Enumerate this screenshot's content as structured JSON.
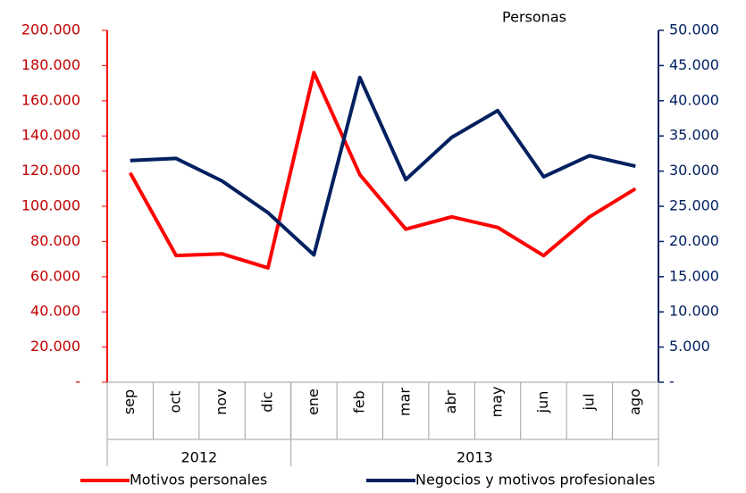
{
  "chart_data": {
    "type": "line",
    "title": "Personas",
    "category_groups": [
      {
        "label": "2012",
        "categories": [
          "sep",
          "oct",
          "nov",
          "dic"
        ]
      },
      {
        "label": "2013",
        "categories": [
          "ene",
          "feb",
          "mar",
          "abr",
          "may",
          "jun",
          "jul",
          "ago"
        ]
      }
    ],
    "series": [
      {
        "name": "Motivos personales",
        "color": "#ff0000",
        "axis": "y",
        "values": [
          119000,
          72000,
          73000,
          65000,
          176000,
          118000,
          87000,
          94000,
          88000,
          72000,
          94000,
          110000
        ]
      },
      {
        "name": "Negocios y motivos profesionales",
        "color": "#002060",
        "axis": "y2",
        "values": [
          31500,
          31800,
          28600,
          24100,
          18100,
          43300,
          28800,
          34800,
          38600,
          29200,
          32200,
          30700
        ]
      }
    ],
    "ylim": [
      0,
      200000
    ],
    "yticks": [
      {
        "value": 0,
        "label": "-"
      },
      {
        "value": 20000,
        "label": "20.000"
      },
      {
        "value": 40000,
        "label": "40.000"
      },
      {
        "value": 60000,
        "label": "60.000"
      },
      {
        "value": 80000,
        "label": "80.000"
      },
      {
        "value": 100000,
        "label": "100.000"
      },
      {
        "value": 120000,
        "label": "120.000"
      },
      {
        "value": 140000,
        "label": "140.000"
      },
      {
        "value": 160000,
        "label": "160.000"
      },
      {
        "value": 180000,
        "label": "180.000"
      },
      {
        "value": 200000,
        "label": "200.000"
      }
    ],
    "y2lim": [
      0,
      50000
    ],
    "y2ticks": [
      {
        "value": 0,
        "label": "-"
      },
      {
        "value": 5000,
        "label": "5.000"
      },
      {
        "value": 10000,
        "label": "10.000"
      },
      {
        "value": 15000,
        "label": "15.000"
      },
      {
        "value": 20000,
        "label": "20.000"
      },
      {
        "value": 25000,
        "label": "25.000"
      },
      {
        "value": 30000,
        "label": "30.000"
      },
      {
        "value": 35000,
        "label": "35.000"
      },
      {
        "value": 40000,
        "label": "40.000"
      },
      {
        "value": 45000,
        "label": "45.000"
      },
      {
        "value": 50000,
        "label": "50.000"
      }
    ],
    "ytick_color": "#c00000",
    "y2tick_color": "#002060",
    "legend": "bottom"
  }
}
